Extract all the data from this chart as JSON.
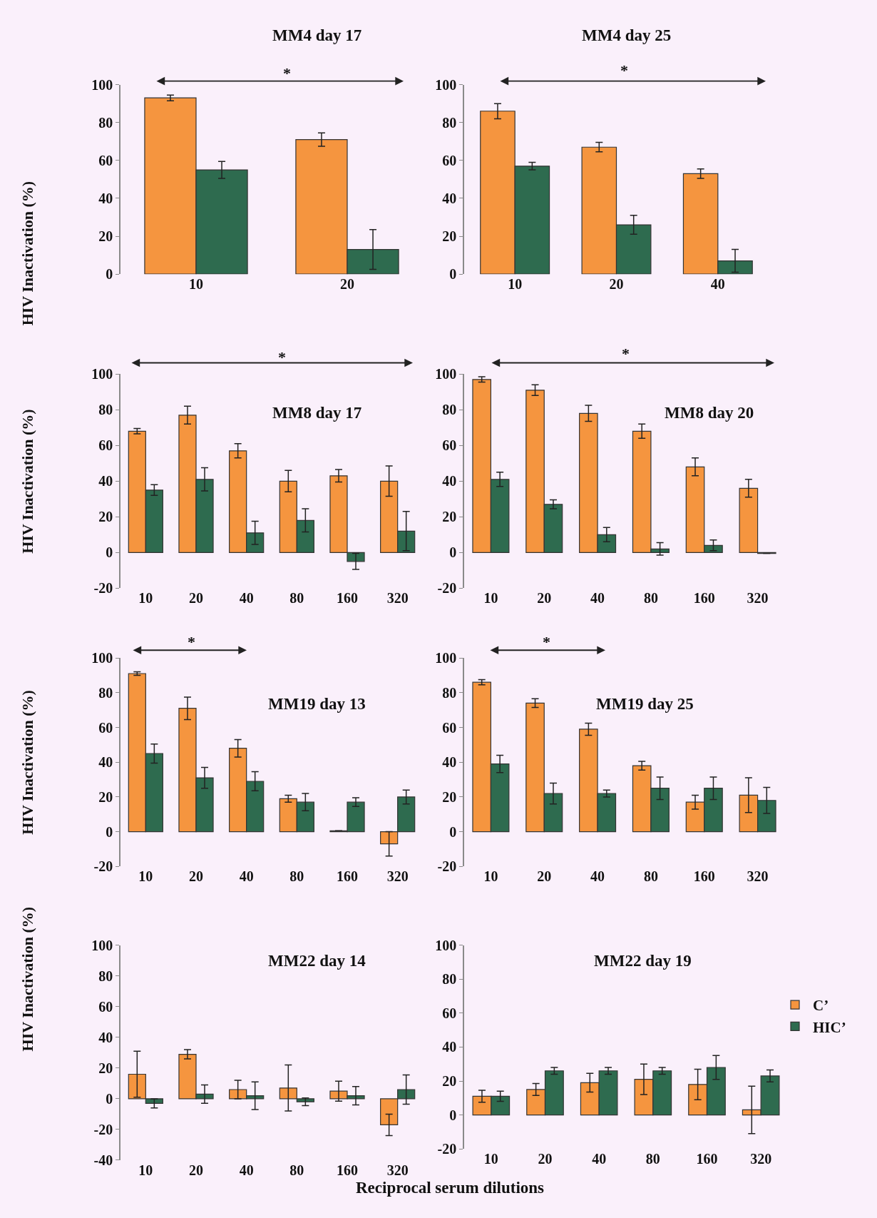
{
  "chart_data": [
    {
      "type": "bar",
      "title": "MM4 day 17",
      "ylabel": "HIV Inactivation (%)",
      "categories": [
        "10",
        "20"
      ],
      "ylim": [
        0,
        100
      ],
      "yticks": [
        0,
        20,
        40,
        60,
        80,
        100
      ],
      "grid": false,
      "legend": false,
      "annotations": [
        "*"
      ],
      "series": [
        {
          "color": "#f5953f",
          "values": [
            93,
            71
          ],
          "errors": [
            1.5,
            3.5
          ]
        },
        {
          "color": "#2e6b4f",
          "values": [
            55,
            13
          ],
          "errors": [
            4.5,
            10.5
          ]
        }
      ]
    },
    {
      "type": "bar",
      "title": "MM4 day 25",
      "categories": [
        "10",
        "20",
        "40"
      ],
      "ylim": [
        0,
        100
      ],
      "yticks": [
        0,
        20,
        40,
        60,
        80,
        100
      ],
      "grid": false,
      "legend": false,
      "annotations": [
        "*"
      ],
      "series": [
        {
          "color": "#f5953f",
          "values": [
            86,
            67,
            53
          ],
          "errors": [
            4,
            2.5,
            2.5
          ]
        },
        {
          "color": "#2e6b4f",
          "values": [
            57,
            26,
            7
          ],
          "errors": [
            2,
            5,
            6
          ]
        }
      ]
    },
    {
      "type": "bar",
      "title": "MM8 day 17",
      "ylabel": "HIV Inactivation (%)",
      "categories": [
        "10",
        "20",
        "40",
        "80",
        "160",
        "320"
      ],
      "ylim": [
        -20,
        100
      ],
      "yticks": [
        -20,
        0,
        20,
        40,
        60,
        80,
        100
      ],
      "grid": false,
      "legend": false,
      "annotations": [
        "*"
      ],
      "series": [
        {
          "color": "#f5953f",
          "values": [
            68,
            77,
            57,
            40,
            43,
            40
          ],
          "errors": [
            1.5,
            5,
            4,
            6,
            3.5,
            8.5
          ]
        },
        {
          "color": "#2e6b4f",
          "values": [
            35,
            41,
            11,
            18,
            -5,
            12
          ],
          "errors": [
            3,
            6.5,
            6.5,
            6.5,
            4.5,
            11
          ]
        }
      ]
    },
    {
      "type": "bar",
      "title": "MM8 day 20",
      "categories": [
        "10",
        "20",
        "40",
        "80",
        "160",
        "320"
      ],
      "ylim": [
        -20,
        100
      ],
      "yticks": [
        -20,
        0,
        20,
        40,
        60,
        80,
        100
      ],
      "grid": false,
      "legend": false,
      "annotations": [
        "*"
      ],
      "series": [
        {
          "color": "#f5953f",
          "values": [
            97,
            91,
            78,
            68,
            48,
            36
          ],
          "errors": [
            1.5,
            3,
            4.5,
            4,
            5,
            5
          ]
        },
        {
          "color": "#2e6b4f",
          "values": [
            41,
            27,
            10,
            2,
            4,
            -0.5
          ],
          "errors": [
            4,
            2.5,
            4,
            3.5,
            3,
            0
          ]
        }
      ]
    },
    {
      "type": "bar",
      "title": "MM19 day 13",
      "ylabel": "HIV Inactivation (%)",
      "categories": [
        "10",
        "20",
        "40",
        "80",
        "160",
        "320"
      ],
      "ylim": [
        -20,
        100
      ],
      "yticks": [
        -20,
        0,
        20,
        40,
        60,
        80,
        100
      ],
      "grid": false,
      "legend": false,
      "annotations": [
        "*"
      ],
      "series": [
        {
          "color": "#f5953f",
          "values": [
            91,
            71,
            48,
            19,
            0.5,
            -7
          ],
          "errors": [
            1,
            6.5,
            5,
            2,
            0,
            7
          ]
        },
        {
          "color": "#2e6b4f",
          "values": [
            45,
            31,
            29,
            17,
            17,
            20
          ],
          "errors": [
            5.5,
            6,
            5.5,
            5,
            2.5,
            4
          ]
        }
      ]
    },
    {
      "type": "bar",
      "title": "MM19 day 25",
      "categories": [
        "10",
        "20",
        "40",
        "80",
        "160",
        "320"
      ],
      "ylim": [
        -20,
        100
      ],
      "yticks": [
        -20,
        0,
        20,
        40,
        60,
        80,
        100
      ],
      "grid": false,
      "legend": false,
      "annotations": [
        "*"
      ],
      "series": [
        {
          "color": "#f5953f",
          "values": [
            86,
            74,
            59,
            38,
            17,
            21
          ],
          "errors": [
            1.5,
            2.5,
            3.5,
            2.5,
            4,
            10
          ]
        },
        {
          "color": "#2e6b4f",
          "values": [
            39,
            22,
            22,
            25,
            25,
            18
          ],
          "errors": [
            5,
            6,
            2,
            6.5,
            6.5,
            7.5
          ]
        }
      ]
    },
    {
      "type": "bar",
      "title": "MM22 day 14",
      "ylabel": "HIV Inactivation (%)",
      "xlabel": "Reciprocal serum dilutions",
      "categories": [
        "10",
        "20",
        "40",
        "80",
        "160",
        "320"
      ],
      "ylim": [
        -40,
        100
      ],
      "yticks": [
        -40,
        -20,
        0,
        20,
        40,
        60,
        80,
        100
      ],
      "grid": false,
      "legend": false,
      "series": [
        {
          "color": "#f5953f",
          "values": [
            16,
            29,
            6,
            7,
            5,
            -17
          ],
          "errors": [
            15,
            3,
            6,
            15,
            6.5,
            7
          ]
        },
        {
          "color": "#2e6b4f",
          "values": [
            -3,
            3,
            2,
            -2,
            2,
            6
          ],
          "errors": [
            3,
            6,
            9,
            2.5,
            6,
            9.5
          ]
        }
      ]
    },
    {
      "type": "bar",
      "title": "MM22 day 19",
      "categories": [
        "10",
        "20",
        "40",
        "80",
        "160",
        "320"
      ],
      "ylim": [
        -20,
        100
      ],
      "yticks": [
        -20,
        0,
        20,
        40,
        60,
        80,
        100
      ],
      "grid": false,
      "legend": "right",
      "series": [
        {
          "name": "C’",
          "color": "#f5953f",
          "values": [
            11,
            15,
            19,
            21,
            18,
            3
          ],
          "errors": [
            3.5,
            3.5,
            5.5,
            9,
            9,
            14
          ]
        },
        {
          "name": "HIC’",
          "color": "#2e6b4f",
          "values": [
            11,
            26,
            26,
            26,
            28,
            23
          ],
          "errors": [
            3,
            2,
            2,
            2,
            7,
            3.5
          ]
        }
      ]
    }
  ]
}
